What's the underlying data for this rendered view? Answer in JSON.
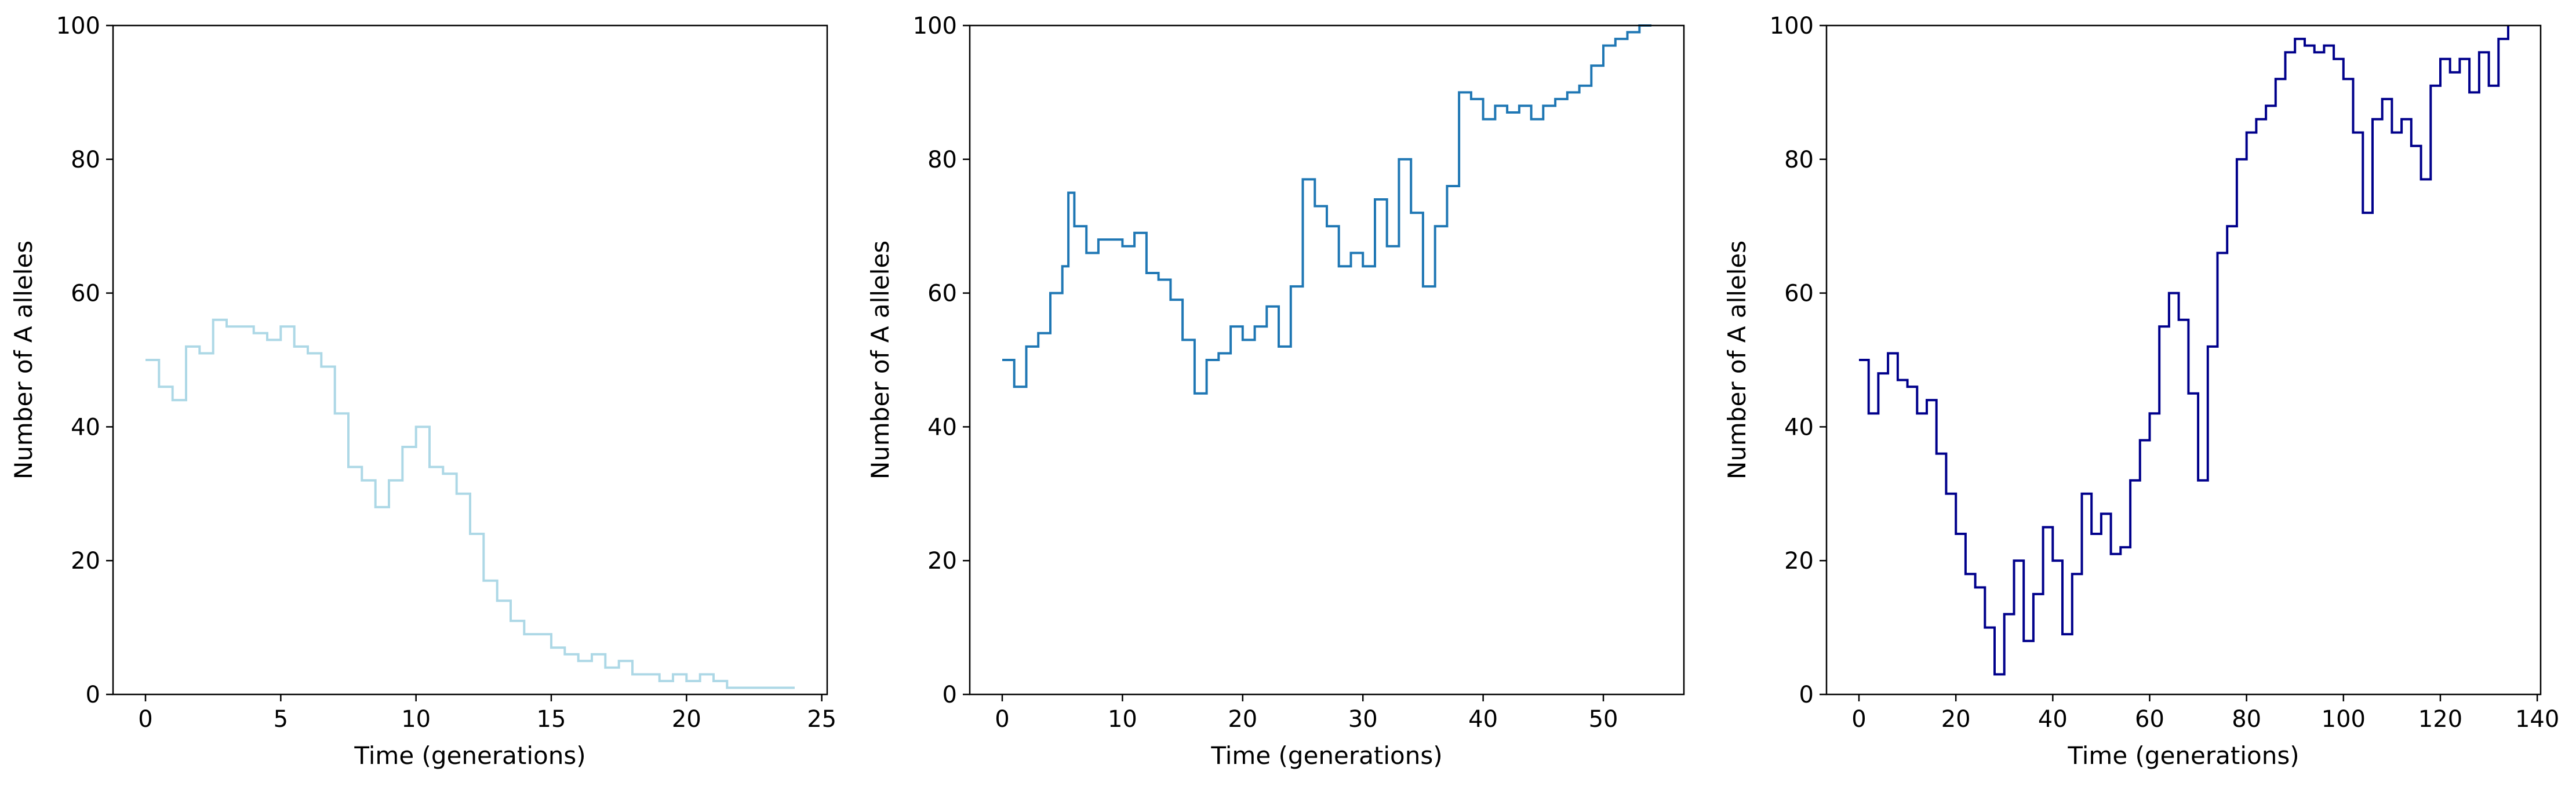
{
  "chart_data": [
    {
      "type": "line",
      "xlabel": "Time (generations)",
      "ylabel": "Number of A alleles",
      "xlim": [
        -1.2,
        25.2
      ],
      "ylim": [
        0,
        100
      ],
      "xticks": [
        0,
        5,
        10,
        15,
        20,
        25
      ],
      "yticks": [
        0,
        20,
        40,
        60,
        80,
        100
      ],
      "grid": false,
      "color": "#add8e6",
      "series": [
        {
          "x": [
            0,
            0.5,
            1,
            1.5,
            2,
            2.5,
            3,
            3.5,
            4,
            4.5,
            5,
            5.5,
            6,
            6.5,
            7,
            7.5,
            8,
            8.5,
            9,
            9.5,
            10,
            10.5,
            11,
            11.5,
            12,
            12.5,
            13,
            13.5,
            14,
            14.5,
            15,
            15.5,
            16,
            16.5,
            17,
            17.5,
            18,
            18.5,
            19,
            19.5,
            20,
            20.5,
            21,
            21.5,
            22,
            23,
            24
          ],
          "y": [
            50,
            46,
            44,
            52,
            51,
            56,
            55,
            55,
            54,
            53,
            55,
            52,
            51,
            49,
            42,
            34,
            32,
            28,
            32,
            37,
            40,
            34,
            33,
            30,
            24,
            17,
            14,
            11,
            9,
            9,
            7,
            6,
            5,
            6,
            4,
            5,
            3,
            3,
            2,
            3,
            2,
            3,
            2,
            1,
            1,
            1,
            1
          ]
        }
      ]
    },
    {
      "type": "line",
      "xlabel": "Time (generations)",
      "ylabel": "Number of A alleles",
      "xlim": [
        -2.7,
        56.7
      ],
      "ylim": [
        0,
        100
      ],
      "xticks": [
        0,
        10,
        20,
        30,
        40,
        50
      ],
      "yticks": [
        0,
        20,
        40,
        60,
        80,
        100
      ],
      "grid": false,
      "color": "#1f77b4",
      "series": [
        {
          "x": [
            0,
            1,
            2,
            3,
            4,
            5,
            5.5,
            6,
            7,
            8,
            9,
            10,
            11,
            12,
            13,
            14,
            15,
            16,
            17,
            18,
            19,
            20,
            21,
            22,
            23,
            24,
            25,
            26,
            27,
            28,
            29,
            30,
            31,
            32,
            33,
            34,
            35,
            36,
            37,
            38,
            39,
            40,
            41,
            42,
            43,
            44,
            45,
            46,
            47,
            48,
            49,
            50,
            51,
            52,
            53,
            54
          ],
          "y": [
            50,
            46,
            52,
            54,
            60,
            64,
            75,
            70,
            66,
            68,
            68,
            67,
            69,
            63,
            62,
            59,
            53,
            45,
            50,
            51,
            55,
            53,
            55,
            58,
            52,
            61,
            77,
            73,
            70,
            64,
            66,
            64,
            74,
            67,
            80,
            72,
            61,
            70,
            76,
            90,
            89,
            86,
            88,
            87,
            88,
            86,
            88,
            89,
            90,
            91,
            94,
            97,
            98,
            99,
            100,
            100
          ]
        }
      ]
    },
    {
      "type": "line",
      "xlabel": "Time (generations)",
      "ylabel": "Number of A alleles",
      "xlim": [
        -6.7,
        140.7
      ],
      "ylim": [
        0,
        100
      ],
      "xticks": [
        0,
        20,
        40,
        60,
        80,
        100,
        120,
        140
      ],
      "yticks": [
        0,
        20,
        40,
        60,
        80,
        100
      ],
      "grid": false,
      "color": "#00008b",
      "series": [
        {
          "x": [
            0,
            2,
            4,
            6,
            8,
            10,
            12,
            14,
            16,
            18,
            20,
            22,
            24,
            26,
            28,
            30,
            32,
            34,
            36,
            38,
            40,
            42,
            44,
            46,
            48,
            50,
            52,
            54,
            56,
            58,
            60,
            62,
            64,
            66,
            68,
            70,
            72,
            74,
            76,
            78,
            80,
            82,
            84,
            86,
            88,
            90,
            92,
            94,
            96,
            98,
            100,
            102,
            104,
            106,
            108,
            110,
            112,
            114,
            116,
            118,
            120,
            122,
            124,
            126,
            128,
            130,
            132,
            134
          ],
          "y": [
            50,
            42,
            48,
            51,
            47,
            46,
            42,
            44,
            36,
            30,
            24,
            18,
            16,
            10,
            3,
            12,
            20,
            8,
            15,
            25,
            20,
            9,
            18,
            30,
            24,
            27,
            21,
            22,
            32,
            38,
            42,
            55,
            60,
            56,
            45,
            32,
            52,
            66,
            70,
            80,
            84,
            86,
            88,
            92,
            96,
            98,
            97,
            96,
            97,
            95,
            92,
            84,
            72,
            86,
            89,
            84,
            86,
            82,
            77,
            91,
            95,
            93,
            95,
            90,
            96,
            91,
            98,
            100
          ]
        }
      ]
    }
  ]
}
